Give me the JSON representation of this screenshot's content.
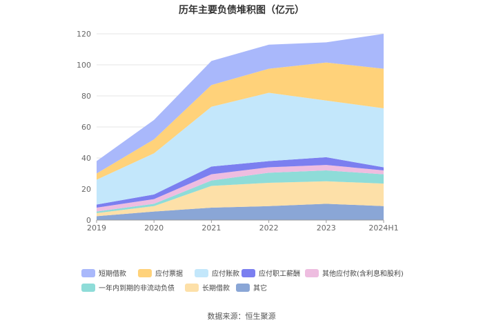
{
  "chart_data": {
    "type": "area",
    "stacked": true,
    "title": "历年主要负债堆积图（亿元）",
    "categories": [
      "2019",
      "2020",
      "2021",
      "2022",
      "2023",
      "2024H1"
    ],
    "ylim": [
      0,
      120
    ],
    "yticks": [
      0,
      20,
      40,
      60,
      80,
      100,
      120
    ],
    "grid": true,
    "legend_position": "bottom",
    "series": [
      {
        "name": "其它",
        "color": "#8aa6d6",
        "values": [
          2.5,
          5.5,
          8.0,
          9.0,
          10.5,
          9.0
        ]
      },
      {
        "name": "长期借款",
        "color": "#fde0a8",
        "values": [
          2.0,
          3.5,
          14.0,
          15.0,
          14.5,
          14.5
        ]
      },
      {
        "name": "一年内到期的非流动负债",
        "color": "#8edcd8",
        "values": [
          1.0,
          1.5,
          3.5,
          6.5,
          7.0,
          6.0
        ]
      },
      {
        "name": "其他应付款(含利息和股利)",
        "color": "#eebde0",
        "values": [
          2.5,
          3.0,
          4.0,
          3.5,
          3.5,
          2.5
        ]
      },
      {
        "name": "应付职工薪酬",
        "color": "#7b7ff0",
        "values": [
          2.0,
          3.0,
          5.0,
          4.0,
          5.0,
          2.0
        ]
      },
      {
        "name": "应付账款",
        "color": "#c3e7fb",
        "values": [
          16.0,
          26.5,
          38.5,
          44.0,
          36.5,
          38.0
        ]
      },
      {
        "name": "应付票据",
        "color": "#ffd27a",
        "values": [
          4.0,
          9.0,
          14.0,
          15.5,
          24.5,
          25.5
        ]
      },
      {
        "name": "短期借款",
        "color": "#a9b8fb",
        "values": [
          8.0,
          12.5,
          15.5,
          15.5,
          13.0,
          22.5
        ]
      }
    ]
  },
  "legend_order": [
    "短期借款",
    "应付票据",
    "应付账款",
    "应付职工薪酬",
    "其他应付款(含利息和股利)",
    "一年内到期的非流动负债",
    "长期借款",
    "其它"
  ],
  "legend_colors": [
    "#a9b8fb",
    "#ffd27a",
    "#c3e7fb",
    "#7b7ff0",
    "#eebde0",
    "#8edcd8",
    "#fde0a8",
    "#8aa6d6"
  ],
  "source": "数据来源：恒生聚源"
}
